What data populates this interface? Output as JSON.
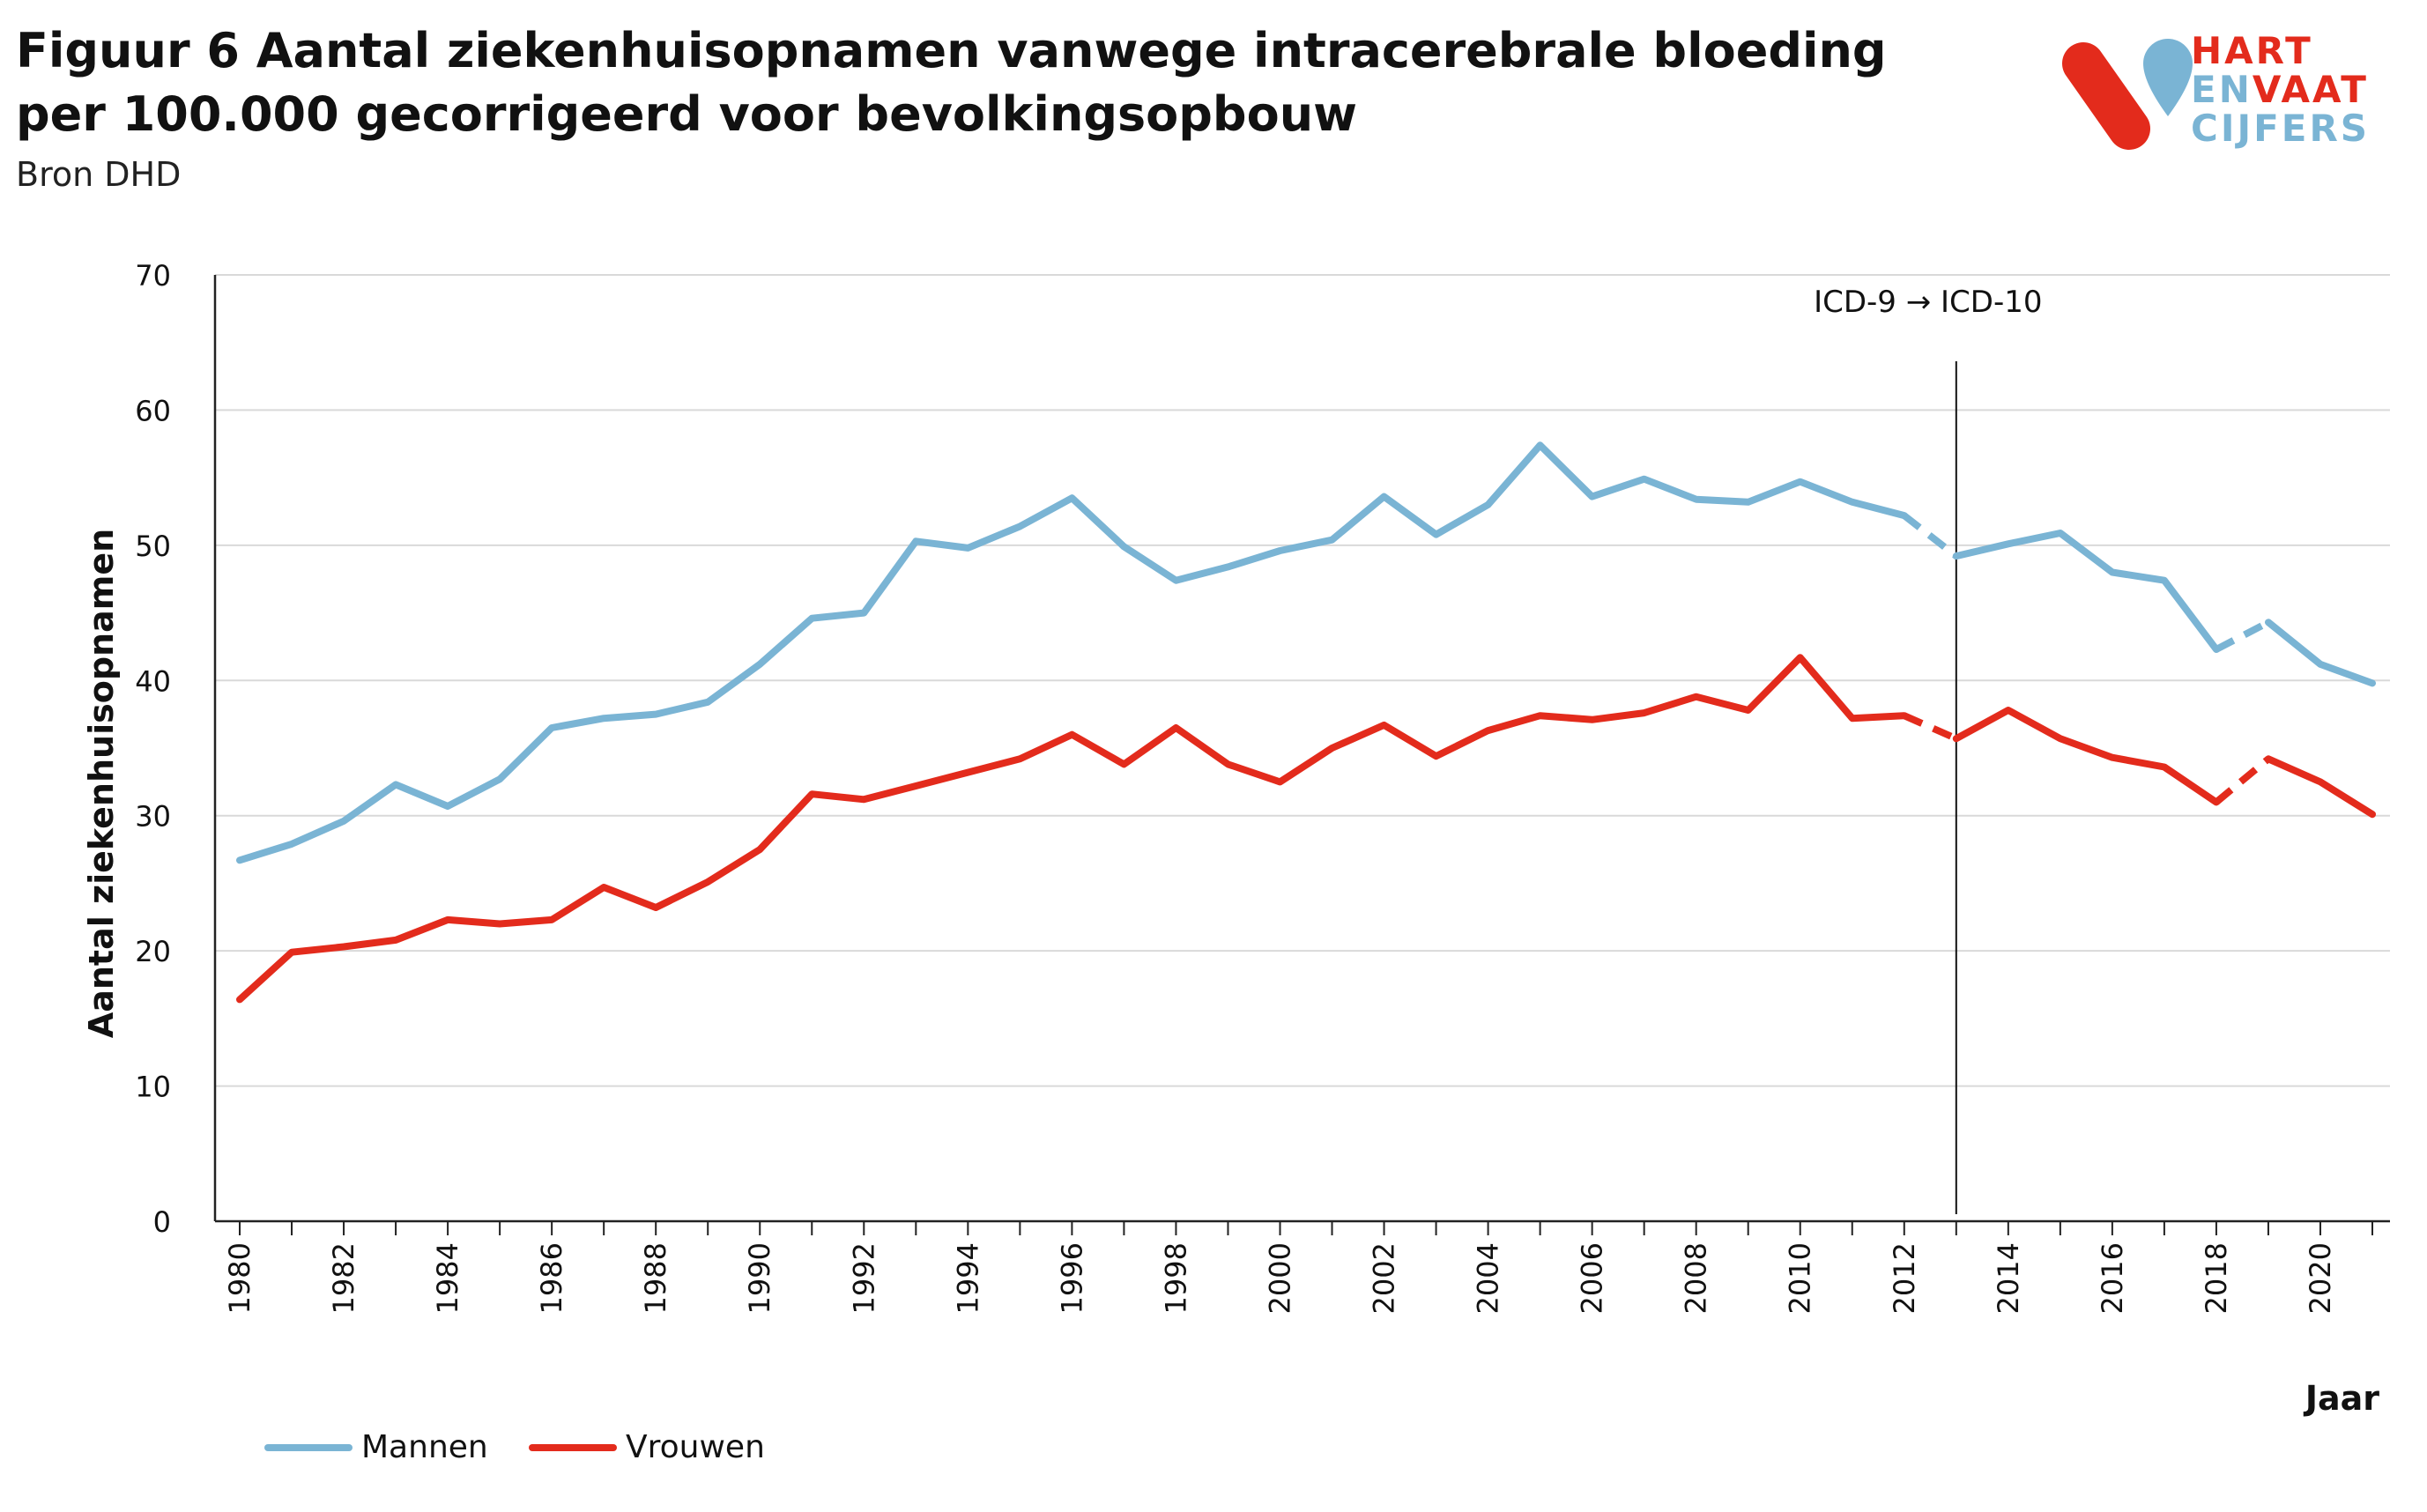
{
  "header": {
    "title": "Figuur 6 Aantal ziekenhuisopnamen vanwege intracerebrale bloeding per 100.000 gecorrigeerd voor bevolkingsopbouw",
    "source": "Bron DHD"
  },
  "logo": {
    "line1_a": "HART",
    "line2_a": "EN",
    "line2_b": "VAAT",
    "line3_a": "CIJFERS",
    "colors": {
      "red": "#e32b1c",
      "blue": "#7ab4d4"
    }
  },
  "chart_data": {
    "type": "line",
    "title": "",
    "xlabel": "Jaar",
    "ylabel": "Aantal ziekenhuisopnamen",
    "ylim": [
      0,
      70
    ],
    "yticks": [
      0,
      10,
      20,
      30,
      40,
      50,
      60,
      70
    ],
    "xlim": [
      1980,
      2021
    ],
    "xticks": [
      1980,
      1982,
      1984,
      1986,
      1988,
      1990,
      1992,
      1994,
      1996,
      1998,
      2000,
      2002,
      2004,
      2006,
      2008,
      2010,
      2012,
      2014,
      2016,
      2018,
      2020
    ],
    "grid": true,
    "legend_position": "bottom-left",
    "annotation": {
      "text": "ICD-9 → ICD-10",
      "x": 2013
    },
    "dashed_segments": [
      [
        2012,
        2013
      ],
      [
        2018,
        2019
      ]
    ],
    "x": [
      1980,
      1981,
      1982,
      1983,
      1984,
      1985,
      1986,
      1987,
      1988,
      1989,
      1990,
      1991,
      1992,
      1993,
      1994,
      1995,
      1996,
      1997,
      1998,
      1999,
      2000,
      2001,
      2002,
      2003,
      2004,
      2005,
      2006,
      2007,
      2008,
      2009,
      2010,
      2011,
      2012,
      2013,
      2014,
      2015,
      2016,
      2017,
      2018,
      2019,
      2020,
      2021
    ],
    "series": [
      {
        "name": "Mannen",
        "color": "#7ab4d4",
        "values": [
          26.7,
          27.9,
          29.6,
          32.3,
          30.7,
          32.7,
          36.5,
          37.2,
          37.5,
          38.4,
          41.2,
          44.6,
          45.0,
          50.3,
          49.8,
          51.4,
          53.5,
          49.9,
          47.4,
          48.4,
          49.6,
          50.4,
          53.6,
          50.8,
          53.0,
          57.4,
          53.6,
          54.9,
          53.4,
          53.2,
          54.7,
          53.2,
          52.2,
          49.2,
          50.1,
          50.9,
          48.0,
          47.4,
          42.3,
          44.3,
          41.2,
          39.8
        ]
      },
      {
        "name": "Vrouwen",
        "color": "#e32b1c",
        "values": [
          16.4,
          19.9,
          20.3,
          20.8,
          22.3,
          22.0,
          22.3,
          24.7,
          23.2,
          25.1,
          27.5,
          31.6,
          31.2,
          32.2,
          33.2,
          34.2,
          36.0,
          33.8,
          36.5,
          33.8,
          32.5,
          35.0,
          36.7,
          34.4,
          36.3,
          37.4,
          37.1,
          37.6,
          38.8,
          37.8,
          41.7,
          37.2,
          37.4,
          35.7,
          37.8,
          35.7,
          34.3,
          33.6,
          31.0,
          34.2,
          32.5,
          30.1
        ]
      }
    ]
  }
}
